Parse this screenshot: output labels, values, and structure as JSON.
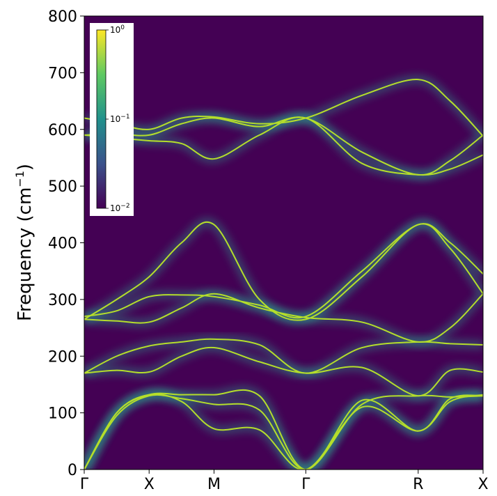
{
  "chart_data": {
    "type": "heatmap",
    "description_kind": "phonon spectral function along high-symmetry path",
    "ylabel": "Frequency (cm",
    "ylabel_sup": "−1",
    "ylabel_close": ")",
    "ylim": [
      0,
      800
    ],
    "yticks": [
      0,
      100,
      200,
      300,
      400,
      500,
      600,
      700,
      800
    ],
    "xticks": [
      "Γ",
      "X",
      "M",
      "Γ",
      "R",
      "X"
    ],
    "xtick_positions": [
      0,
      0.5,
      1.0,
      1.7071,
      2.5731,
      3.0731
    ],
    "colormap": "viridis",
    "color_scale": "log",
    "colorbar": {
      "min": 0.01,
      "max": 1,
      "ticks": [
        {
          "base": "10",
          "exp": "0",
          "value": 1
        },
        {
          "base": "10",
          "exp": "−1",
          "value": 0.1
        },
        {
          "base": "10",
          "exp": "−2",
          "value": 0.01
        }
      ],
      "placement": "top-left inset"
    },
    "branches": [
      {
        "name": "acoustic-1",
        "points": [
          [
            0,
            0
          ],
          [
            0.25,
            95
          ],
          [
            0.5,
            130
          ],
          [
            0.75,
            125
          ],
          [
            1.0,
            115
          ],
          [
            1.35,
            105
          ],
          [
            1.7071,
            0
          ],
          [
            2.14,
            115
          ],
          [
            2.5731,
            130
          ],
          [
            2.82,
            128
          ],
          [
            3.0731,
            130
          ]
        ]
      },
      {
        "name": "acoustic-2",
        "points": [
          [
            0,
            0
          ],
          [
            0.25,
            100
          ],
          [
            0.5,
            132
          ],
          [
            0.75,
            120
          ],
          [
            1.0,
            72
          ],
          [
            1.35,
            70
          ],
          [
            1.7071,
            0
          ],
          [
            2.14,
            110
          ],
          [
            2.5731,
            68
          ],
          [
            2.82,
            120
          ],
          [
            3.0731,
            132
          ]
        ]
      },
      {
        "name": "acoustic-3",
        "points": [
          [
            0,
            0
          ],
          [
            0.25,
            100
          ],
          [
            0.5,
            132
          ],
          [
            0.75,
            132
          ],
          [
            1.0,
            132
          ],
          [
            1.35,
            130
          ],
          [
            1.7071,
            0
          ],
          [
            2.14,
            122
          ],
          [
            2.5731,
            68
          ],
          [
            2.82,
            125
          ],
          [
            3.0731,
            130
          ]
        ]
      },
      {
        "name": "opt-170",
        "points": [
          [
            0,
            170
          ],
          [
            0.25,
            175
          ],
          [
            0.5,
            172
          ],
          [
            0.75,
            200
          ],
          [
            1.0,
            215
          ],
          [
            1.35,
            190
          ],
          [
            1.7071,
            170
          ],
          [
            2.14,
            180
          ],
          [
            2.5731,
            130
          ],
          [
            2.82,
            175
          ],
          [
            3.0731,
            172
          ]
        ]
      },
      {
        "name": "opt-220",
        "points": [
          [
            0,
            170
          ],
          [
            0.25,
            200
          ],
          [
            0.5,
            218
          ],
          [
            0.75,
            225
          ],
          [
            1.0,
            230
          ],
          [
            1.35,
            220
          ],
          [
            1.7071,
            170
          ],
          [
            2.14,
            215
          ],
          [
            2.5731,
            225
          ],
          [
            2.82,
            222
          ],
          [
            3.0731,
            220
          ]
        ]
      },
      {
        "name": "opt-265",
        "points": [
          [
            0,
            265
          ],
          [
            0.25,
            262
          ],
          [
            0.5,
            260
          ],
          [
            0.75,
            285
          ],
          [
            1.0,
            310
          ],
          [
            1.35,
            285
          ],
          [
            1.7071,
            268
          ],
          [
            2.14,
            260
          ],
          [
            2.5731,
            225
          ],
          [
            2.82,
            250
          ],
          [
            3.0731,
            310
          ]
        ]
      },
      {
        "name": "opt-270",
        "points": [
          [
            0,
            270
          ],
          [
            0.25,
            280
          ],
          [
            0.5,
            305
          ],
          [
            0.75,
            308
          ],
          [
            1.0,
            305
          ],
          [
            1.35,
            290
          ],
          [
            1.7071,
            270
          ],
          [
            2.14,
            350
          ],
          [
            2.5731,
            432
          ],
          [
            2.82,
            400
          ],
          [
            3.0731,
            345
          ]
        ]
      },
      {
        "name": "opt-raise",
        "points": [
          [
            0,
            265
          ],
          [
            0.25,
            300
          ],
          [
            0.5,
            340
          ],
          [
            0.75,
            400
          ],
          [
            1.0,
            432
          ],
          [
            1.35,
            300
          ],
          [
            1.7071,
            265
          ],
          [
            2.14,
            340
          ],
          [
            2.5731,
            432
          ],
          [
            2.82,
            390
          ],
          [
            3.0731,
            310
          ]
        ]
      },
      {
        "name": "opt-550",
        "points": [
          [
            0,
            590
          ],
          [
            0.25,
            585
          ],
          [
            0.5,
            580
          ],
          [
            0.75,
            575
          ],
          [
            1.0,
            548
          ],
          [
            1.35,
            590
          ],
          [
            1.7071,
            620
          ],
          [
            2.14,
            540
          ],
          [
            2.5731,
            520
          ],
          [
            2.82,
            530
          ],
          [
            3.0731,
            555
          ]
        ]
      },
      {
        "name": "opt-600",
        "points": [
          [
            0,
            590
          ],
          [
            0.25,
            592
          ],
          [
            0.5,
            590
          ],
          [
            0.75,
            610
          ],
          [
            1.0,
            620
          ],
          [
            1.35,
            605
          ],
          [
            1.7071,
            620
          ],
          [
            2.14,
            560
          ],
          [
            2.5731,
            520
          ],
          [
            2.82,
            545
          ],
          [
            3.0731,
            590
          ]
        ]
      },
      {
        "name": "opt-top",
        "points": [
          [
            0,
            620
          ],
          [
            0.25,
            610
          ],
          [
            0.5,
            600
          ],
          [
            0.75,
            620
          ],
          [
            1.0,
            622
          ],
          [
            1.35,
            610
          ],
          [
            1.7071,
            620
          ],
          [
            2.14,
            660
          ],
          [
            2.5731,
            688
          ],
          [
            2.82,
            650
          ],
          [
            3.0731,
            588
          ]
        ]
      }
    ]
  }
}
